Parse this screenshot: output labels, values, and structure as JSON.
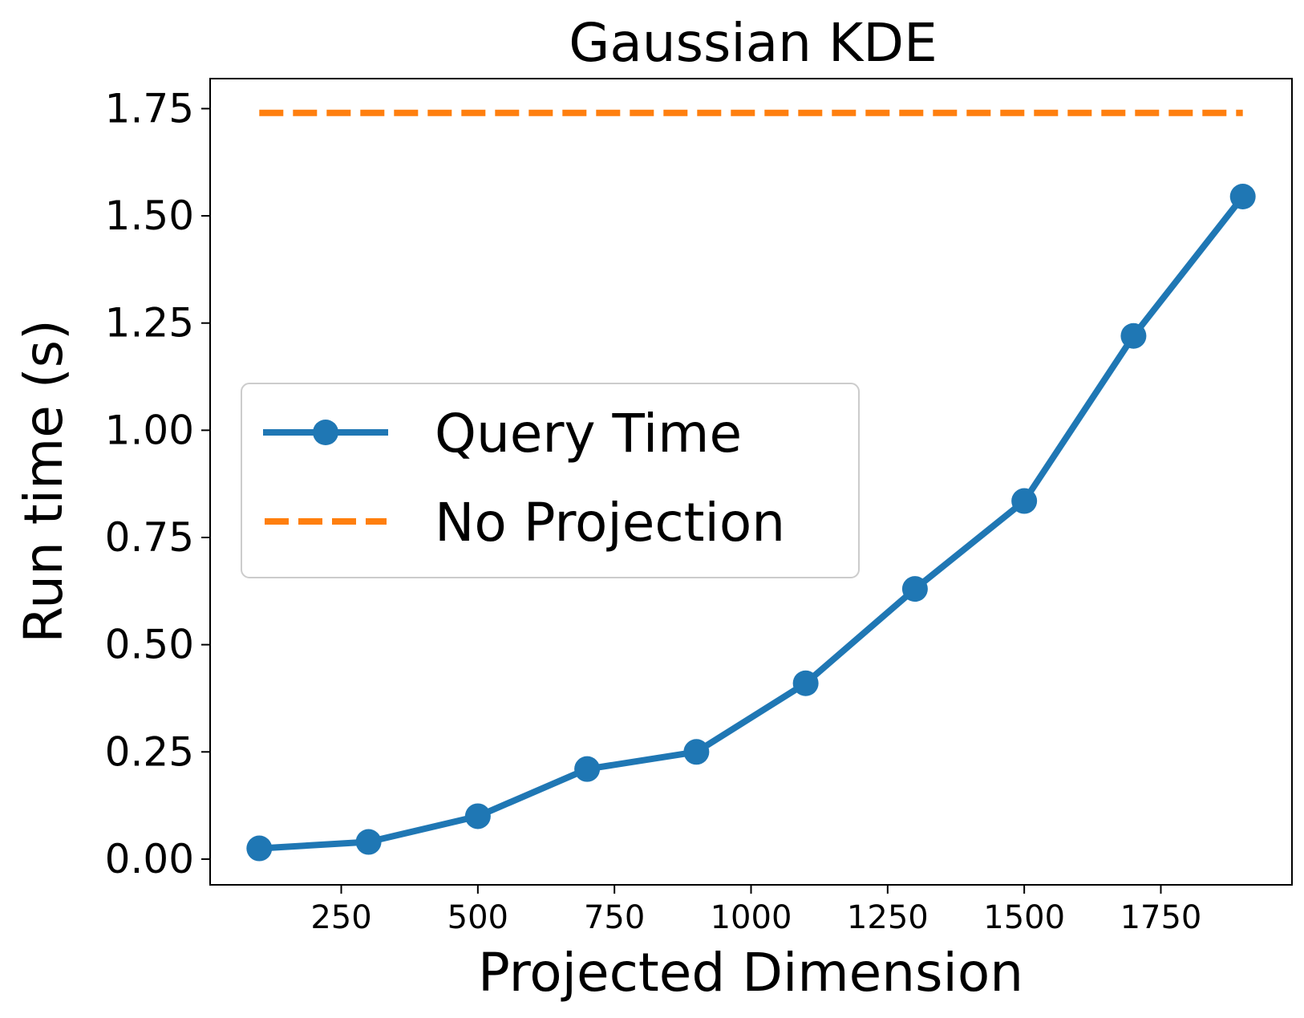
{
  "chart_data": {
    "type": "line",
    "title": "Gaussian KDE",
    "xlabel": "Projected Dimension",
    "ylabel": "Run time (s)",
    "xlim": [
      10,
      1990
    ],
    "ylim": [
      -0.06,
      1.82
    ],
    "x_ticks": [
      250,
      500,
      750,
      1000,
      1250,
      1500,
      1750
    ],
    "x_tick_labels": [
      "250",
      "500",
      "750",
      "1000",
      "1250",
      "1500",
      "1750"
    ],
    "y_ticks": [
      0.0,
      0.25,
      0.5,
      0.75,
      1.0,
      1.25,
      1.5,
      1.75
    ],
    "y_tick_labels": [
      "0.00",
      "0.25",
      "0.50",
      "0.75",
      "1.00",
      "1.25",
      "1.50",
      "1.75"
    ],
    "grid": false,
    "legend_position": "center-left",
    "series": [
      {
        "name": "Query Time",
        "style": "solid-line-with-circle-markers",
        "color": "#1f77b4",
        "x": [
          100,
          300,
          500,
          700,
          900,
          1100,
          1300,
          1500,
          1700,
          1900
        ],
        "y": [
          0.025,
          0.04,
          0.1,
          0.21,
          0.25,
          0.41,
          0.63,
          0.835,
          1.22,
          1.545
        ]
      },
      {
        "name": "No Projection",
        "style": "dashed-line",
        "color": "#ff7f0e",
        "x": [
          100,
          1900
        ],
        "y": [
          1.74,
          1.74
        ]
      }
    ]
  }
}
